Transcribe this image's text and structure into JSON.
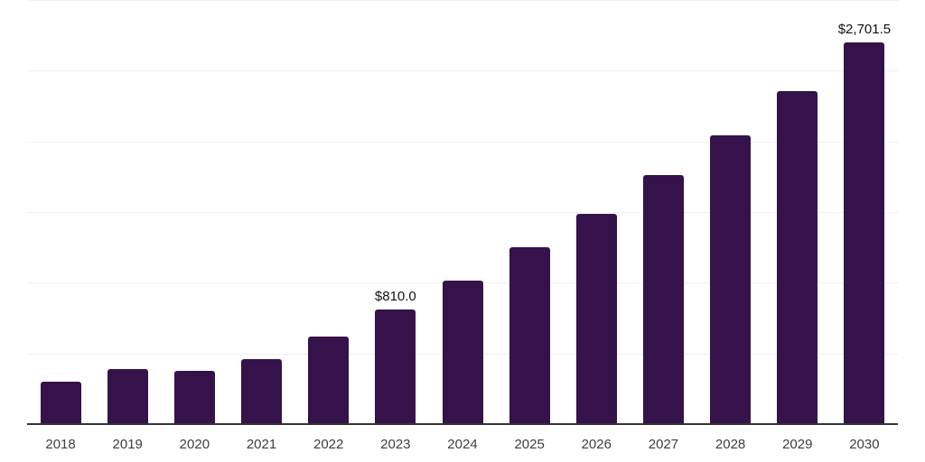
{
  "chart_data": {
    "type": "bar",
    "title": "",
    "categories": [
      "2018",
      "2019",
      "2020",
      "2021",
      "2022",
      "2023",
      "2024",
      "2025",
      "2026",
      "2027",
      "2028",
      "2029",
      "2030"
    ],
    "values": [
      300,
      390,
      375,
      460,
      620,
      810,
      1015,
      1250,
      1490,
      1760,
      2040,
      2355,
      2701.5
    ],
    "value_labels": [
      "",
      "",
      "",
      "",
      "",
      "$810.0",
      "",
      "",
      "",
      "",
      "",
      "",
      "$2,701.5"
    ],
    "xlabel": "",
    "ylabel": "",
    "ylim": [
      0,
      3000
    ],
    "gridline_step": 500,
    "grid": "horizontal",
    "legend": "none",
    "colors": {
      "bar": "#351249",
      "gridline": "#f0f0f0",
      "axis_line": "#333333",
      "tick_label": "#3d3d3d",
      "value_label": "#111111",
      "background": "#ffffff"
    }
  }
}
